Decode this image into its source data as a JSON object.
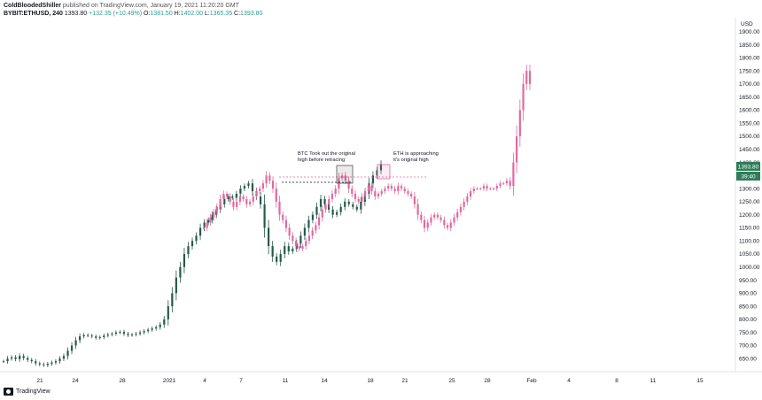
{
  "header": {
    "author": "ColdBloodedShiller",
    "published": "published on TradingView.com, January 19, 2021 11:20:20 GMT",
    "symbol": "BYBIT:ETHUSD, 240",
    "price": "1393.80",
    "change": "+132.35 (+10.49%)",
    "o_label": "O:",
    "o_val": "1381.50",
    "h_label": "H:",
    "h_val": "1402.00",
    "l_label": "L:",
    "l_val": "1365.35",
    "c_label": "C:",
    "c_val": "1393.80"
  },
  "footer": {
    "brand": "TradingView"
  },
  "chart_data": {
    "type": "candlestick",
    "currency": "USD",
    "price_badge": "1393.80",
    "countdown_badge": "39:40",
    "ylim": [
      600,
      1950
    ],
    "y_ticks": [
      650,
      700,
      750,
      800,
      850,
      900,
      950,
      1000,
      1050,
      1100,
      1150,
      1200,
      1250,
      1300,
      1350,
      1400,
      1450,
      1500,
      1550,
      1600,
      1650,
      1700,
      1750,
      1800,
      1850,
      1900
    ],
    "x_tick_labels": [
      "21",
      "24",
      "28",
      "2021",
      "4",
      "7",
      "11",
      "14",
      "18",
      "21",
      "25",
      "28",
      "Feb",
      "4",
      "8",
      "11",
      "15"
    ],
    "series": [
      {
        "name": "ETHUSD",
        "color": "#26594a",
        "close": [
          640,
          650,
          655,
          648,
          660,
          652,
          645,
          640,
          632,
          628,
          625,
          630,
          635,
          640,
          650,
          660,
          680,
          700,
          720,
          735,
          740,
          738,
          735,
          730,
          732,
          738,
          742,
          745,
          750,
          752,
          745,
          740,
          742,
          745,
          750,
          755,
          760,
          765,
          770,
          780,
          800,
          850,
          900,
          960,
          1000,
          1050,
          1080,
          1100,
          1120,
          1150,
          1170,
          1180,
          1200,
          1220,
          1240,
          1260,
          1270,
          1265,
          1280,
          1300,
          1310,
          1320,
          1290,
          1270,
          1240,
          1150,
          1080,
          1040,
          1020,
          1050,
          1080,
          1060,
          1070,
          1090,
          1120,
          1150,
          1180,
          1200,
          1230,
          1260,
          1240,
          1220,
          1200,
          1210,
          1230,
          1250,
          1240,
          1230,
          1220,
          1250,
          1280,
          1320,
          1350,
          1370,
          1394
        ]
      },
      {
        "name": "BTCUSD",
        "color": "#e06a9f",
        "close": [
          1150,
          1170,
          1190,
          1210,
          1230,
          1260,
          1280,
          1270,
          1250,
          1230,
          1250,
          1270,
          1260,
          1240,
          1250,
          1270,
          1290,
          1300,
          1320,
          1350,
          1330,
          1300,
          1250,
          1200,
          1180,
          1150,
          1120,
          1100,
          1080,
          1070,
          1080,
          1100,
          1120,
          1140,
          1160,
          1190,
          1220,
          1240,
          1260,
          1280,
          1300,
          1340,
          1350,
          1330,
          1300,
          1280,
          1260,
          1250,
          1270,
          1290,
          1310,
          1290,
          1270,
          1280,
          1290,
          1300,
          1310,
          1300,
          1290,
          1310,
          1300,
          1290,
          1280,
          1270,
          1240,
          1200,
          1180,
          1150,
          1170,
          1190,
          1200,
          1190,
          1180,
          1160,
          1150,
          1170,
          1190,
          1210,
          1230,
          1250,
          1270,
          1290,
          1300,
          1300,
          1300,
          1310,
          1300,
          1300,
          1300,
          1310,
          1320,
          1320,
          1330,
          1310,
          1400,
          1500,
          1600,
          1700,
          1750,
          1700
        ]
      }
    ],
    "annotations": [
      {
        "text_line1": "BTC Took out the original",
        "text_line2": "high before retracing"
      },
      {
        "text_line1": "ETH is approaching",
        "text_line2": "it's original high"
      }
    ]
  }
}
